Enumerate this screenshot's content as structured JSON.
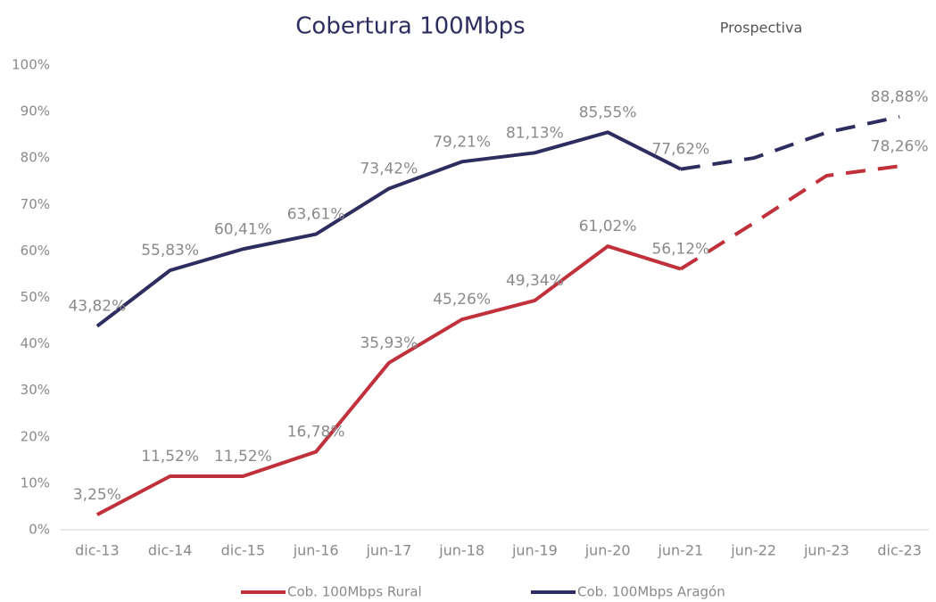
{
  "chart_data": {
    "type": "line",
    "title": "Cobertura 100Mbps",
    "annotation": "Prospectiva",
    "categories": [
      "dic-13",
      "dic-14",
      "dic-15",
      "jun-16",
      "jun-17",
      "jun-18",
      "jun-19",
      "jun-20",
      "jun-21",
      "jun-22",
      "jun-23",
      "dic-23"
    ],
    "forecast_start": "jun-21",
    "series": [
      {
        "name": "Cob. 100Mbps Rural",
        "color": "#c1313b",
        "values": [
          3.25,
          11.52,
          11.52,
          16.78,
          35.93,
          45.26,
          49.34,
          61.02,
          56.12,
          66,
          76.2,
          78.26
        ],
        "value_labels": [
          "3,25%",
          "11,52%",
          "11,52%",
          "16,78%",
          "35,93%",
          "45,26%",
          "49,34%",
          "61,02%",
          "56,12%",
          null,
          null,
          "78,26%"
        ]
      },
      {
        "name": "Cob. 100Mbps Aragón",
        "color": "#2e2d5f",
        "values": [
          43.82,
          55.83,
          60.41,
          63.61,
          73.42,
          79.21,
          81.13,
          85.55,
          77.62,
          80,
          85.5,
          88.88
        ],
        "value_labels": [
          "43,82%",
          "55,83%",
          "60,41%",
          "63,61%",
          "73,42%",
          "79,21%",
          "81,13%",
          "85,55%",
          "77,62%",
          null,
          null,
          "88,88%"
        ]
      }
    ],
    "ylim": [
      0,
      100
    ],
    "yticks": [
      {
        "value": 0,
        "label": "0%"
      },
      {
        "value": 10,
        "label": "10%"
      },
      {
        "value": 20,
        "label": "20%"
      },
      {
        "value": 30,
        "label": "30%"
      },
      {
        "value": 40,
        "label": "40%"
      },
      {
        "value": 50,
        "label": "50%"
      },
      {
        "value": 60,
        "label": "60%"
      },
      {
        "value": 70,
        "label": "70%"
      },
      {
        "value": 80,
        "label": "80%"
      },
      {
        "value": 90,
        "label": "90%"
      },
      {
        "value": 100,
        "label": "100%"
      }
    ],
    "grid": false
  }
}
